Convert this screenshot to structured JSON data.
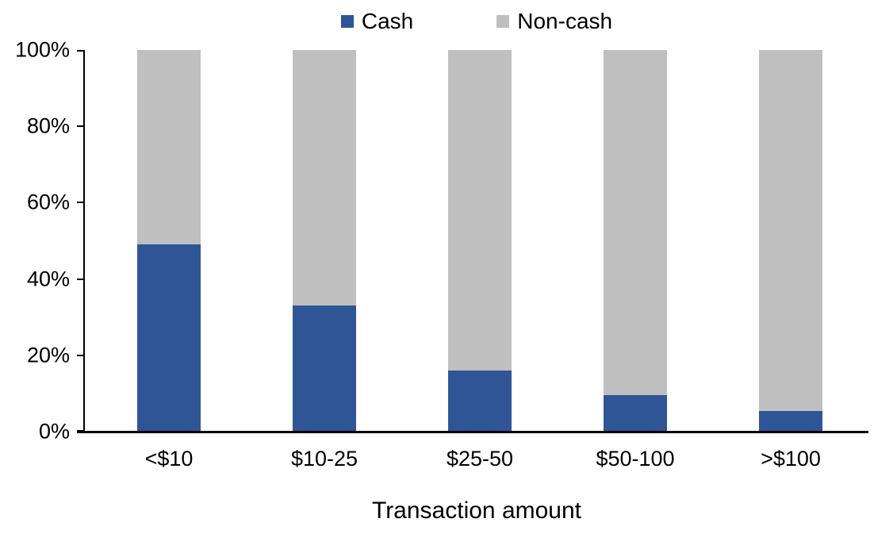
{
  "legend": {
    "items": [
      {
        "label": "Cash",
        "color": "#2F5597"
      },
      {
        "label": "Non-cash",
        "color": "#BFBFBF"
      }
    ]
  },
  "chart_data": {
    "type": "bar",
    "stacked": true,
    "title": "",
    "xlabel": "Transaction amount",
    "ylabel": "",
    "categories": [
      "<$10",
      "$10-25",
      "$25-50",
      "$50-100",
      ">$100"
    ],
    "series": [
      {
        "name": "Cash",
        "color": "#2F5597",
        "values": [
          49,
          33,
          16,
          9.5,
          5.5
        ]
      },
      {
        "name": "Non-cash",
        "color": "#BFBFBF",
        "values": [
          51,
          67,
          84,
          90.5,
          94.5
        ]
      }
    ],
    "y_ticks": [
      "0%",
      "20%",
      "40%",
      "60%",
      "80%",
      "100%"
    ],
    "ylim": [
      0,
      100
    ],
    "grid": false,
    "legend_position": "top-center"
  }
}
